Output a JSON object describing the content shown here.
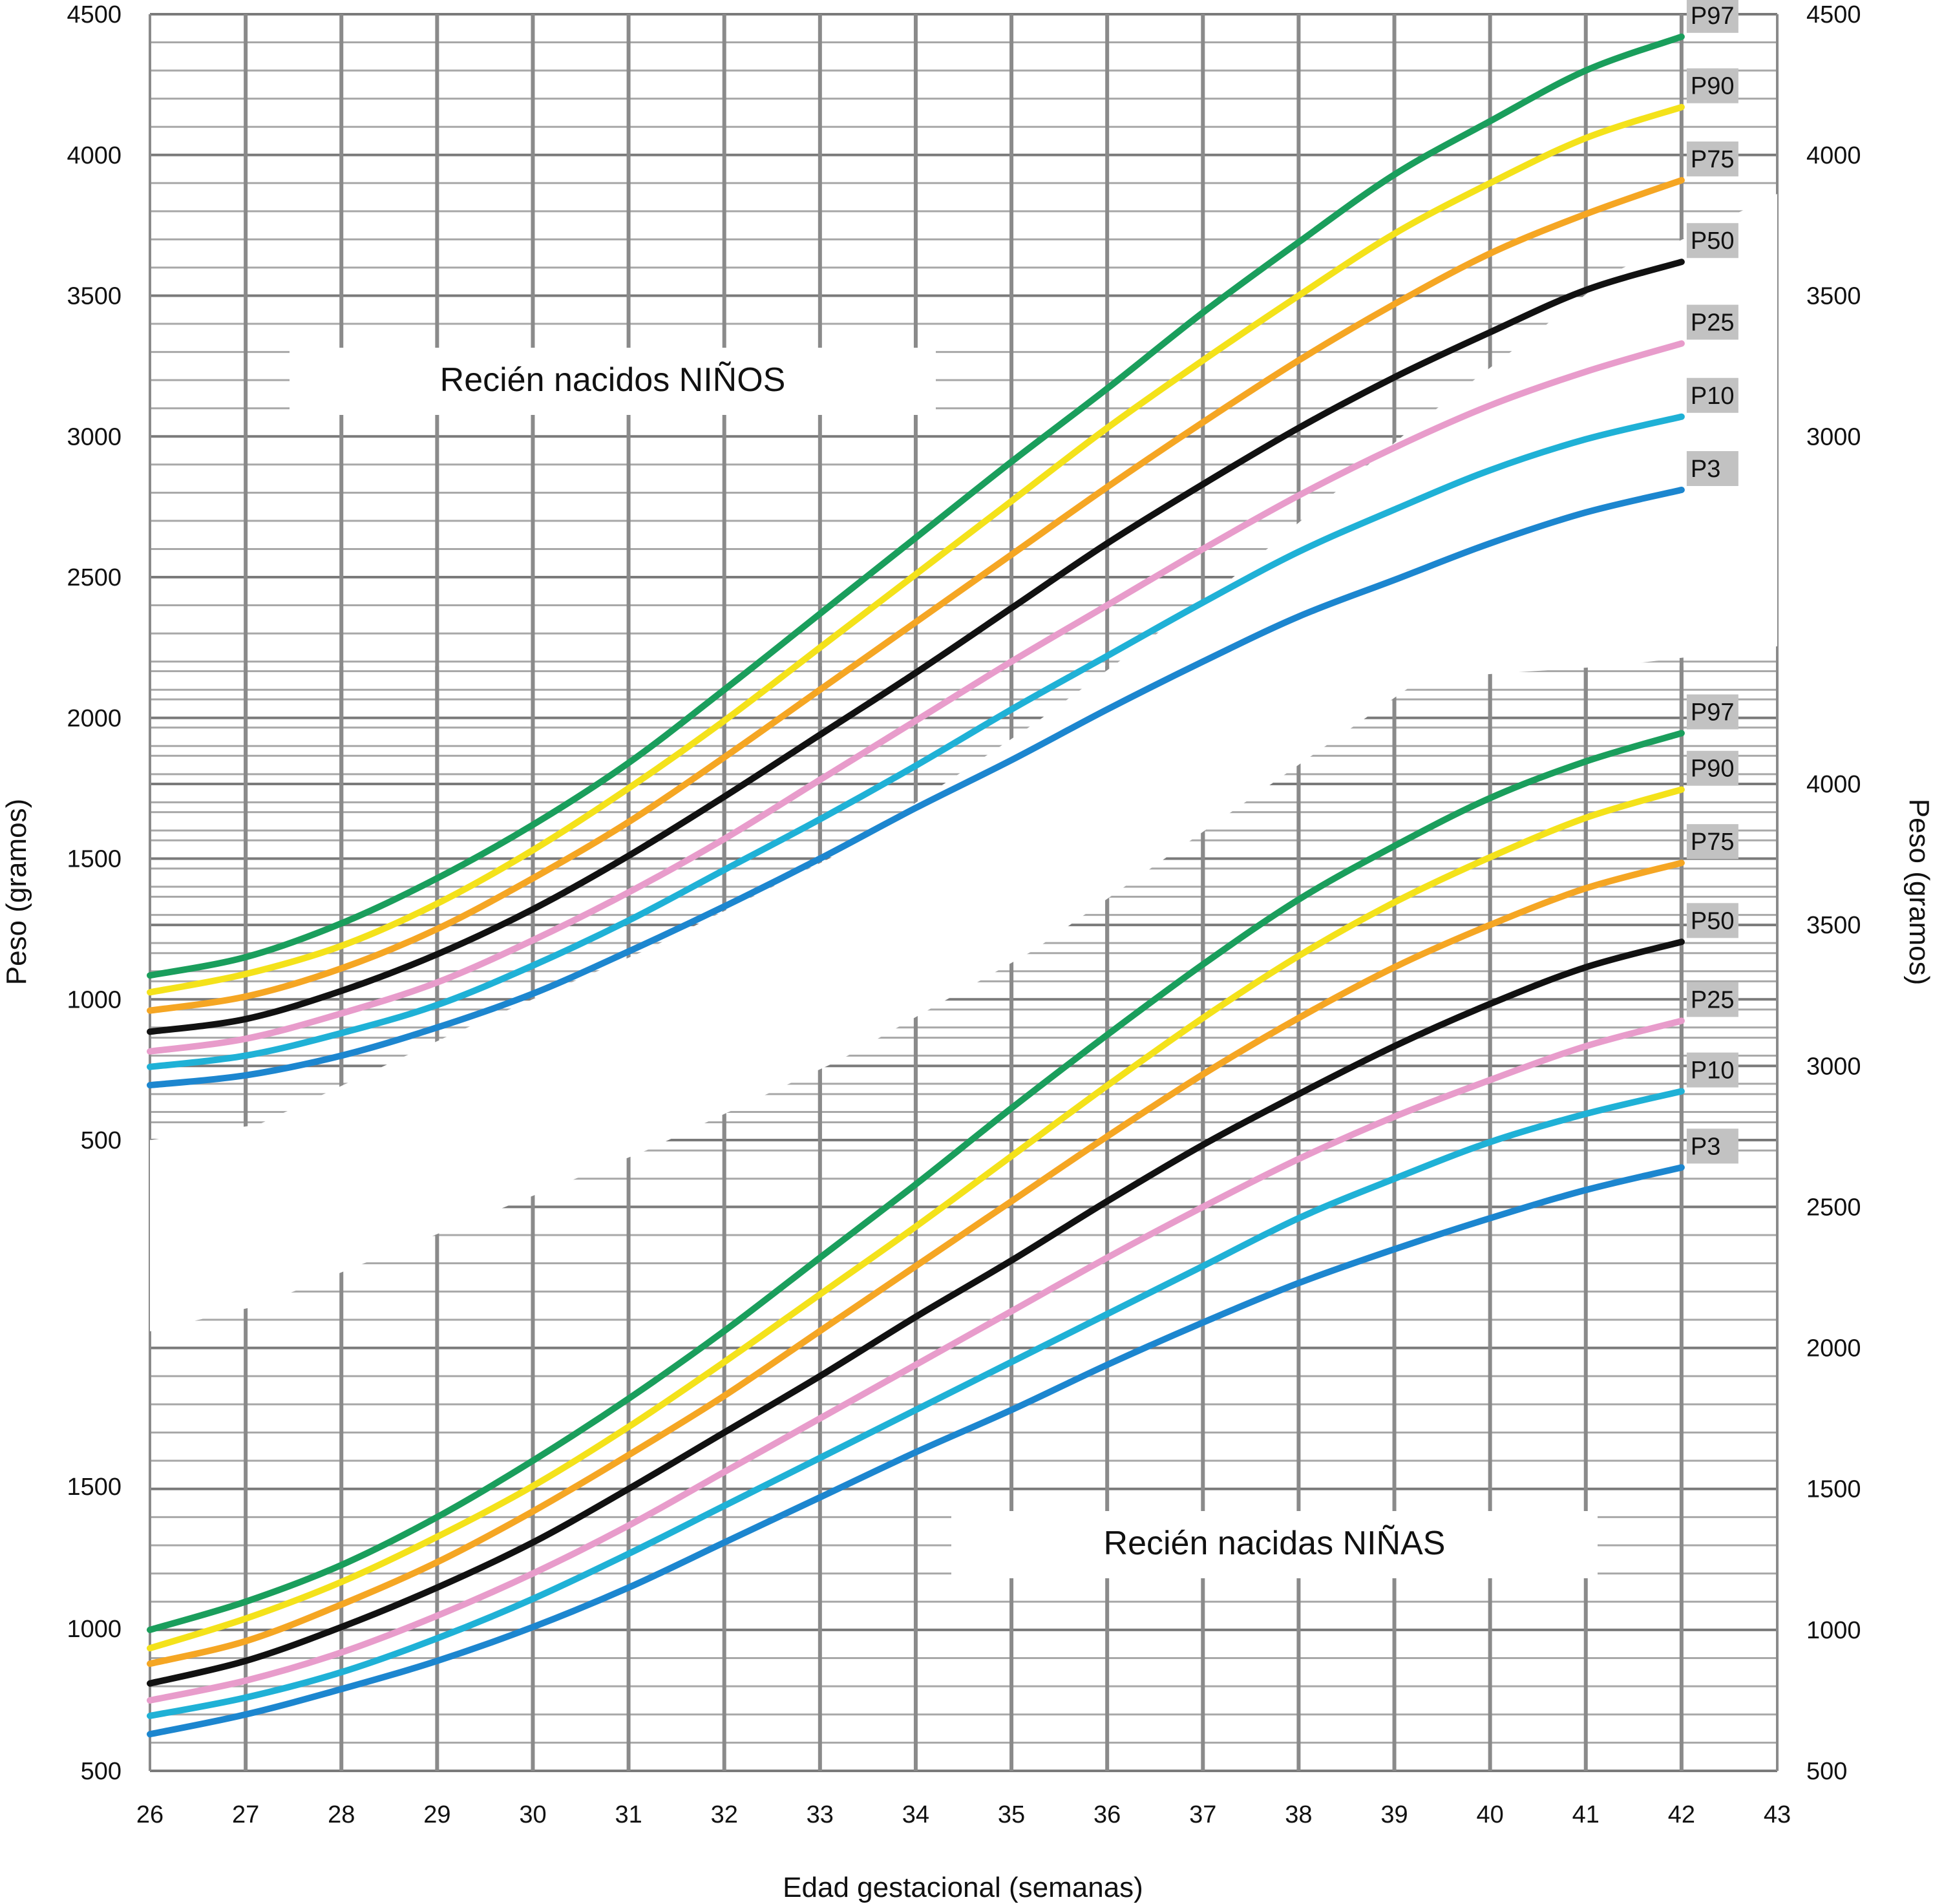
{
  "chart_data": {
    "type": "line",
    "x_label": "Edad gestacional (semanas)",
    "y_label_left": "Peso (gramos)",
    "y_label_right": "Peso (gramos)",
    "x_ticks": [
      26,
      27,
      28,
      29,
      30,
      31,
      32,
      33,
      34,
      35,
      36,
      37,
      38,
      39,
      40,
      41,
      42,
      43
    ],
    "colors": {
      "P97": "#1a9e5c",
      "P90": "#f4e21a",
      "P75": "#f5a623",
      "P50": "#111111",
      "P25": "#e89ccb",
      "P10": "#1fb1d6",
      "P3": "#1c86cf"
    },
    "panels": [
      {
        "title": "Recién nacidos NIÑOS",
        "xlim": [
          26,
          43
        ],
        "ylim": [
          500,
          4500
        ],
        "y_ticks_left": [
          500,
          1000,
          1500,
          2000,
          2500,
          3000,
          3500,
          4000,
          4500
        ],
        "y_ticks_right": [
          3000,
          3500,
          4000,
          4500
        ],
        "x": [
          26,
          27,
          28,
          29,
          30,
          31,
          32,
          33,
          34,
          35,
          36,
          37,
          38,
          39,
          40,
          41,
          42
        ],
        "series": [
          {
            "name": "P97",
            "values": [
              1085,
              1150,
              1270,
              1430,
              1620,
              1840,
              2100,
              2370,
              2640,
              2910,
              3170,
              3440,
              3690,
              3930,
              4120,
              4300,
              4420
            ]
          },
          {
            "name": "P90",
            "values": [
              1025,
              1090,
              1190,
              1340,
              1530,
              1750,
              1990,
              2250,
              2510,
              2770,
              3030,
              3270,
              3500,
              3720,
              3900,
              4060,
              4170
            ]
          },
          {
            "name": "P75",
            "values": [
              960,
              1010,
              1110,
              1250,
              1430,
              1630,
              1860,
              2100,
              2340,
              2580,
              2820,
              3050,
              3270,
              3470,
              3650,
              3790,
              3910
            ]
          },
          {
            "name": "P50",
            "values": [
              885,
              930,
              1030,
              1160,
              1320,
              1510,
              1720,
              1940,
              2160,
              2390,
              2620,
              2830,
              3030,
              3210,
              3370,
              3520,
              3620
            ]
          },
          {
            "name": "P25",
            "values": [
              815,
              860,
              950,
              1060,
              1210,
              1380,
              1570,
              1780,
              1990,
              2200,
              2400,
              2600,
              2790,
              2960,
              3110,
              3230,
              3330
            ]
          },
          {
            "name": "P10",
            "values": [
              760,
              800,
              880,
              980,
              1120,
              1280,
              1460,
              1640,
              1830,
              2030,
              2220,
              2410,
              2590,
              2740,
              2880,
              2990,
              3070
            ]
          },
          {
            "name": "P3",
            "values": [
              695,
              730,
              800,
              900,
              1020,
              1170,
              1330,
              1500,
              1680,
              1850,
              2030,
              2200,
              2360,
              2490,
              2620,
              2730,
              2810
            ]
          }
        ]
      },
      {
        "title": "Recién nacidas NIÑAS",
        "xlim": [
          26,
          43
        ],
        "ylim": [
          500,
          4500
        ],
        "y_ticks_left": [
          500,
          1000,
          1500
        ],
        "y_ticks_right": [
          500,
          1000,
          1500,
          2000,
          2500,
          3000,
          3500,
          4000
        ],
        "x": [
          26,
          27,
          28,
          29,
          30,
          31,
          32,
          33,
          34,
          35,
          36,
          37,
          38,
          39,
          40,
          41,
          42
        ],
        "series": [
          {
            "name": "P97",
            "values": [
              1000,
              1100,
              1230,
              1400,
              1600,
              1820,
              2060,
              2320,
              2580,
              2850,
              3110,
              3360,
              3590,
              3780,
              3950,
              4080,
              4180
            ]
          },
          {
            "name": "P90",
            "values": [
              935,
              1040,
              1170,
              1330,
              1510,
              1720,
              1950,
              2190,
              2430,
              2680,
              2930,
              3170,
              3390,
              3580,
              3740,
              3880,
              3980
            ]
          },
          {
            "name": "P75",
            "values": [
              880,
              960,
              1090,
              1240,
              1420,
              1620,
              1830,
              2060,
              2290,
              2520,
              2750,
              2970,
              3170,
              3350,
              3500,
              3630,
              3720
            ]
          },
          {
            "name": "P50",
            "values": [
              810,
              890,
              1010,
              1150,
              1310,
              1500,
              1700,
              1900,
              2110,
              2310,
              2520,
              2720,
              2900,
              3070,
              3220,
              3350,
              3440
            ]
          },
          {
            "name": "P25",
            "values": [
              750,
              820,
              920,
              1050,
              1200,
              1370,
              1560,
              1750,
              1940,
              2130,
              2320,
              2500,
              2670,
              2820,
              2950,
              3070,
              3160
            ]
          },
          {
            "name": "P10",
            "values": [
              695,
              760,
              850,
              970,
              1110,
              1270,
              1440,
              1610,
              1780,
              1950,
              2120,
              2290,
              2460,
              2600,
              2730,
              2830,
              2910
            ]
          },
          {
            "name": "P3",
            "values": [
              630,
              700,
              790,
              890,
              1010,
              1150,
              1310,
              1470,
              1630,
              1780,
              1940,
              2090,
              2230,
              2350,
              2460,
              2560,
              2640
            ]
          }
        ]
      }
    ]
  }
}
